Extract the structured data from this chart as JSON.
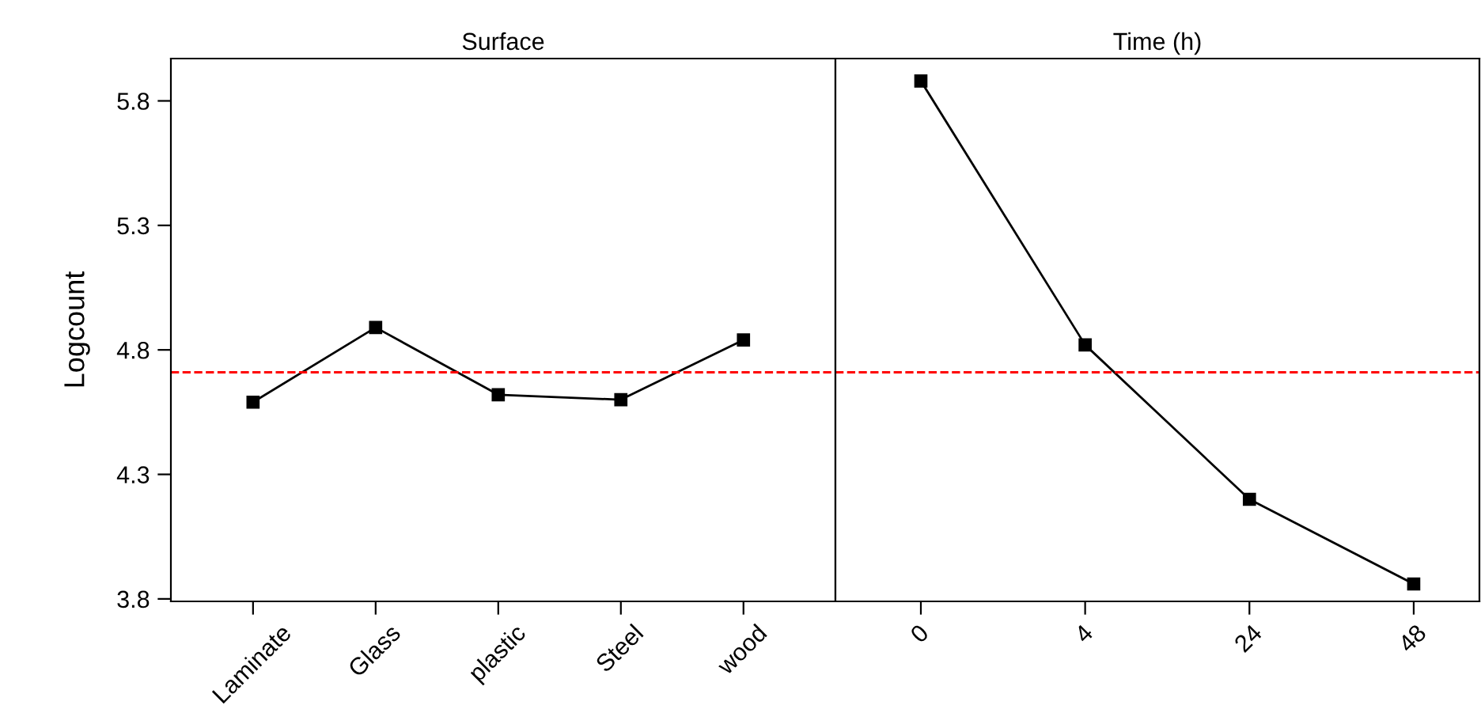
{
  "chart_data": [
    {
      "type": "line",
      "title": "Surface",
      "ylabel": "Logcount",
      "categories": [
        "Laminate",
        "Glass",
        "plastic",
        "Steel",
        "wood"
      ],
      "series": [
        {
          "color": "#000000",
          "values": [
            4.59,
            4.89,
            4.62,
            4.6,
            4.84
          ]
        }
      ],
      "ylim": [
        3.79,
        5.97
      ],
      "yticks": [
        3.8,
        4.3,
        4.8,
        5.3,
        5.8
      ],
      "marker": "square",
      "line_style": "solid",
      "ref_lines": [
        {
          "axis": "y",
          "value": 4.71,
          "color": "#ff0000",
          "line_style": "dashed"
        }
      ]
    },
    {
      "type": "line",
      "title": "Time (h)",
      "categories": [
        "0",
        "4",
        "24",
        "48"
      ],
      "series": [
        {
          "color": "#000000",
          "values": [
            5.88,
            4.82,
            4.2,
            3.86
          ]
        }
      ],
      "ylim": [
        3.79,
        5.97
      ],
      "tick_labels": "x",
      "marker": "square",
      "line_style": "solid",
      "ref_lines": [
        {
          "axis": "y",
          "value": 4.71,
          "color": "#ff0000",
          "line_style": "dashed"
        }
      ]
    }
  ]
}
